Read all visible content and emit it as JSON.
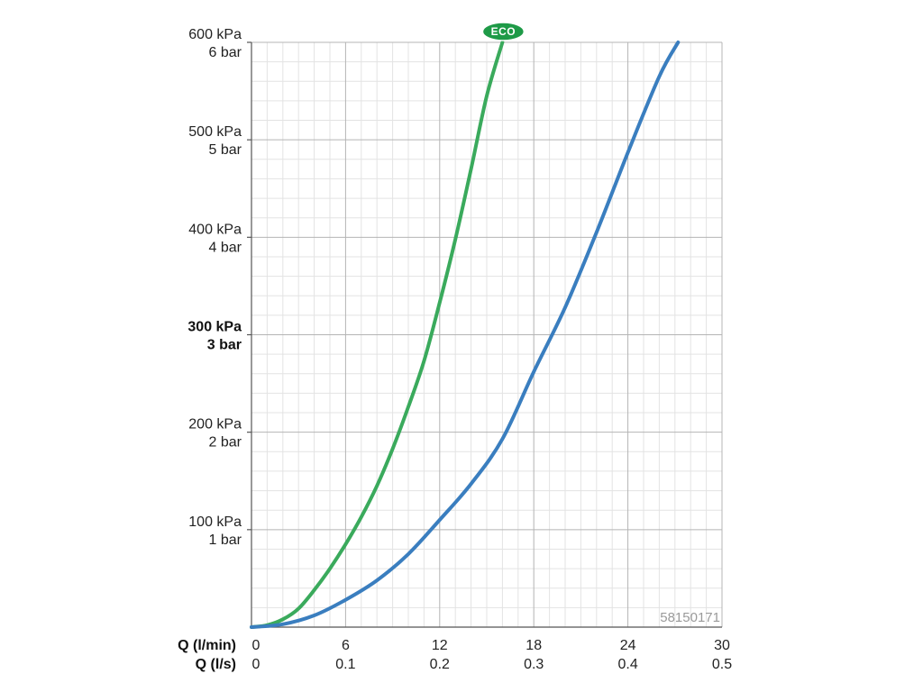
{
  "chart_data": {
    "type": "line",
    "title": "",
    "x_primary_label": "Q (l/min)",
    "x_secondary_label": "Q (l/s)",
    "xlim": [
      0,
      30
    ],
    "ylim": [
      0,
      600
    ],
    "x_ticks_primary": [
      "0",
      "6",
      "12",
      "18",
      "24",
      "30"
    ],
    "x_ticks_secondary": [
      "0",
      "0.1",
      "0.2",
      "0.3",
      "0.4",
      "0.5"
    ],
    "y_ticks": [
      {
        "value": 100,
        "kpa": "100 kPa",
        "bar": "1 bar",
        "bold": false
      },
      {
        "value": 200,
        "kpa": "200 kPa",
        "bar": "2 bar",
        "bold": false
      },
      {
        "value": 300,
        "kpa": "300 kPa",
        "bar": "3 bar",
        "bold": true
      },
      {
        "value": 400,
        "kpa": "400 kPa",
        "bar": "4 bar",
        "bold": false
      },
      {
        "value": 500,
        "kpa": "500 kPa",
        "bar": "5 bar",
        "bold": false
      },
      {
        "value": 600,
        "kpa": "600 kPa",
        "bar": "6 bar",
        "bold": false
      }
    ],
    "grid": true,
    "series": [
      {
        "name": "ECO",
        "color": "#3aaa5c",
        "points": [
          [
            0,
            0
          ],
          [
            1,
            2
          ],
          [
            2,
            8
          ],
          [
            3,
            19
          ],
          [
            4,
            38
          ],
          [
            5,
            60
          ],
          [
            6,
            85
          ],
          [
            7,
            113
          ],
          [
            8,
            145
          ],
          [
            9,
            183
          ],
          [
            10,
            226
          ],
          [
            11,
            273
          ],
          [
            12,
            333
          ],
          [
            13,
            398
          ],
          [
            14,
            470
          ],
          [
            15,
            545
          ],
          [
            16,
            600
          ]
        ]
      },
      {
        "name": "",
        "color": "#3a7ebf",
        "points": [
          [
            0,
            0
          ],
          [
            2,
            3
          ],
          [
            4,
            12
          ],
          [
            6,
            28
          ],
          [
            8,
            48
          ],
          [
            10,
            75
          ],
          [
            12,
            110
          ],
          [
            14,
            147
          ],
          [
            16,
            193
          ],
          [
            18,
            262
          ],
          [
            20,
            328
          ],
          [
            22,
            405
          ],
          [
            24,
            487
          ],
          [
            26,
            565
          ],
          [
            27.2,
            600
          ]
        ]
      }
    ],
    "badge": {
      "text": "ECO",
      "color": "#1e9a47"
    },
    "code": "58150171"
  }
}
